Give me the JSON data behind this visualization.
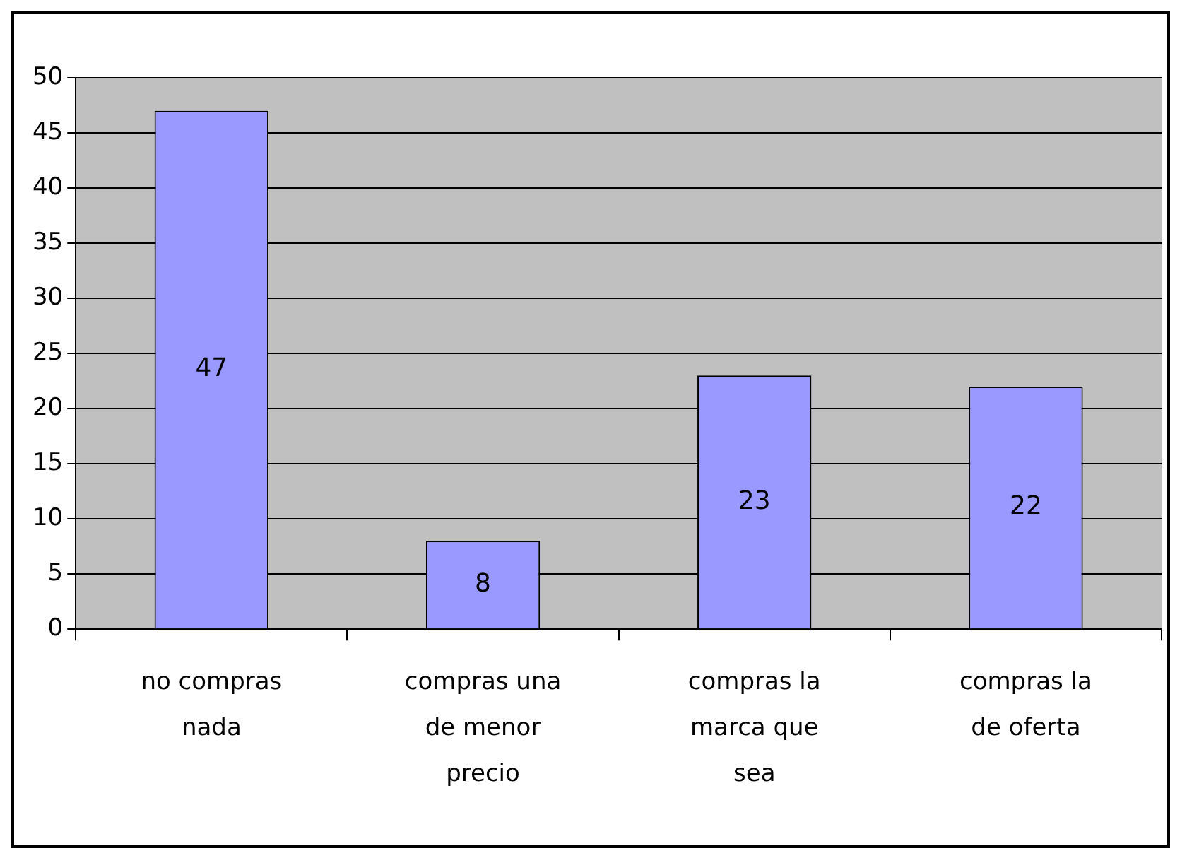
{
  "chart_data": {
    "type": "bar",
    "categories": [
      "no compras nada",
      "compras una de menor precio",
      "compras la marca que sea",
      "compras la de oferta"
    ],
    "values": [
      47,
      8,
      23,
      22
    ],
    "color": "#9999ff",
    "ylim": [
      0,
      50
    ],
    "yticks": [
      0,
      5,
      10,
      15,
      20,
      25,
      30,
      35,
      40,
      45,
      50
    ],
    "grid": "y",
    "legend": false,
    "data_labels": true
  }
}
